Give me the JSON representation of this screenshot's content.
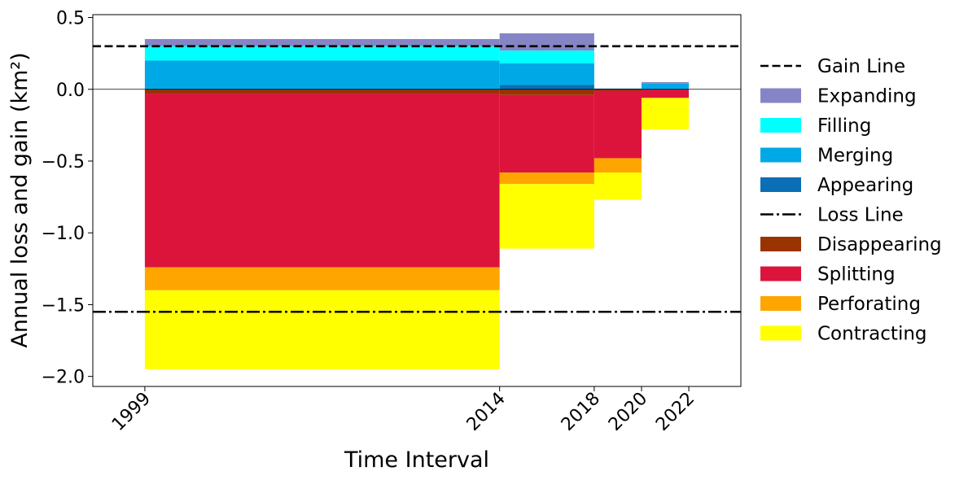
{
  "chart_data": {
    "type": "bar",
    "title": "",
    "xlabel": "Time Interval",
    "ylabel": "Annual loss and gain (km²)",
    "ylim": [
      -2.07,
      0.52
    ],
    "xlim": [
      1996.8,
      2024.2
    ],
    "x_ticks": [
      {
        "value": 1999,
        "label": "1999"
      },
      {
        "value": 2014,
        "label": "2014"
      },
      {
        "value": 2018,
        "label": "2018"
      },
      {
        "value": 2020,
        "label": "2020"
      },
      {
        "value": 2022,
        "label": "2022"
      }
    ],
    "y_ticks": [
      {
        "value": 0.5,
        "label": "0.5"
      },
      {
        "value": 0.0,
        "label": "0.0"
      },
      {
        "value": -0.5,
        "label": "−0.5"
      },
      {
        "value": -1.0,
        "label": "−1.0"
      },
      {
        "value": -1.5,
        "label": "−1.5"
      },
      {
        "value": -2.0,
        "label": "−2.0"
      }
    ],
    "intervals": [
      [
        1999,
        2014
      ],
      [
        2014,
        2018
      ],
      [
        2018,
        2020
      ],
      [
        2020,
        2022
      ]
    ],
    "gain_series": [
      {
        "name": "Appearing",
        "color": "#0a6fb5",
        "values": [
          0.0,
          0.03,
          0.005,
          0.0
        ]
      },
      {
        "name": "Merging",
        "color": "#00a8e6",
        "values": [
          0.2,
          0.15,
          0.0,
          0.04
        ]
      },
      {
        "name": "Filling",
        "color": "#00ffff",
        "values": [
          0.1,
          0.09,
          0.0,
          0.0
        ]
      },
      {
        "name": "Expanding",
        "color": "#8585c6",
        "values": [
          0.05,
          0.12,
          0.0,
          0.01
        ]
      }
    ],
    "loss_series": [
      {
        "name": "Disappearing",
        "color": "#993300",
        "values": [
          -0.03,
          -0.04,
          -0.01,
          0.0
        ]
      },
      {
        "name": "Splitting",
        "color": "#dc143c",
        "values": [
          -1.21,
          -0.54,
          -0.47,
          -0.06
        ]
      },
      {
        "name": "Perforating",
        "color": "#ffa500",
        "values": [
          -0.16,
          -0.08,
          -0.1,
          0.0
        ]
      },
      {
        "name": "Contracting",
        "color": "#ffff00",
        "values": [
          -0.55,
          -0.45,
          -0.19,
          -0.22
        ]
      }
    ],
    "reference_lines": [
      {
        "name": "Gain Line",
        "value": 0.3,
        "style": "dashed"
      },
      {
        "name": "Loss Line",
        "value": -1.55,
        "style": "dashdot"
      }
    ],
    "legend": {
      "placement": "right",
      "entries": [
        {
          "label": "Gain Line",
          "kind": "dashed"
        },
        {
          "label": "Expanding",
          "kind": "patch",
          "color": "#8585c6"
        },
        {
          "label": "Filling",
          "kind": "patch",
          "color": "#00ffff"
        },
        {
          "label": "Merging",
          "kind": "patch",
          "color": "#00a8e6"
        },
        {
          "label": "Appearing",
          "kind": "patch",
          "color": "#0a6fb5"
        },
        {
          "label": "Loss Line",
          "kind": "dashdot"
        },
        {
          "label": "Disappearing",
          "kind": "patch",
          "color": "#993300"
        },
        {
          "label": "Splitting",
          "kind": "patch",
          "color": "#dc143c"
        },
        {
          "label": "Perforating",
          "kind": "patch",
          "color": "#ffa500"
        },
        {
          "label": "Contracting",
          "kind": "patch",
          "color": "#ffff00"
        }
      ]
    },
    "grid": false
  }
}
